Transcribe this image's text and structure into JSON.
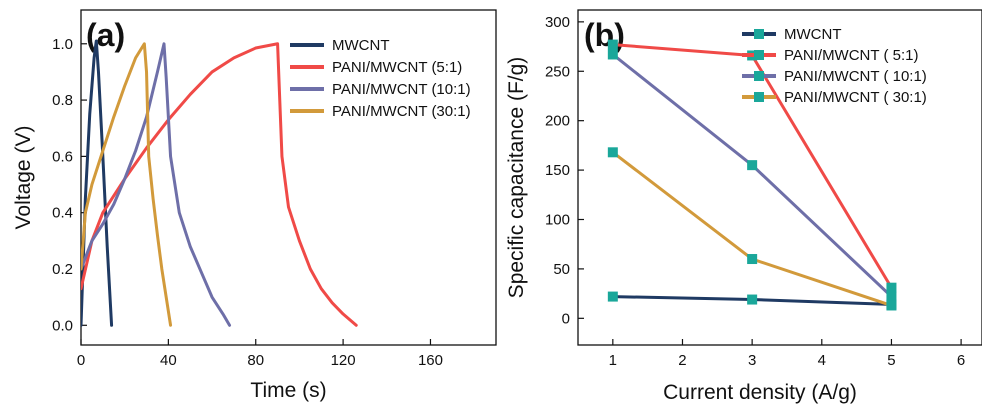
{
  "chart_data": [
    {
      "panel": "(a)",
      "type": "line",
      "xlabel": "Time (s)",
      "ylabel": "Voltage (V)",
      "xlim": [
        0,
        190
      ],
      "ylim": [
        -0.07,
        1.12
      ],
      "xticks": [
        0,
        40,
        80,
        120,
        160
      ],
      "yticks": [
        0.0,
        0.2,
        0.4,
        0.6,
        0.8,
        1.0
      ],
      "ytick_labels": [
        "0.0",
        "0.2",
        "0.4",
        "0.6",
        "0.8",
        "1.0"
      ],
      "legend_position": "top-right",
      "series": [
        {
          "name": "MWCNT",
          "color": "#1f3a63",
          "x": [
            0,
            2,
            4,
            6,
            7,
            8,
            10,
            12,
            14
          ],
          "y": [
            0.0,
            0.45,
            0.75,
            0.95,
            1.01,
            0.9,
            0.6,
            0.28,
            0.0
          ]
        },
        {
          "name": "PANI/MWCNT (5:1)",
          "color": "#f04a47",
          "x": [
            0,
            5,
            10,
            20,
            30,
            40,
            50,
            60,
            70,
            80,
            90,
            91,
            92,
            95,
            100,
            105,
            110,
            115,
            120,
            126
          ],
          "y": [
            0.13,
            0.3,
            0.4,
            0.52,
            0.63,
            0.73,
            0.82,
            0.9,
            0.95,
            0.985,
            1.0,
            0.8,
            0.6,
            0.42,
            0.3,
            0.2,
            0.13,
            0.08,
            0.04,
            0.0
          ]
        },
        {
          "name": "PANI/MWCNT (10:1)",
          "color": "#6e6fa8",
          "x": [
            0,
            5,
            10,
            15,
            20,
            25,
            30,
            35,
            38,
            39,
            41,
            45,
            50,
            55,
            60,
            65,
            68
          ],
          "y": [
            0.2,
            0.3,
            0.36,
            0.43,
            0.52,
            0.62,
            0.74,
            0.9,
            1.0,
            0.88,
            0.6,
            0.4,
            0.28,
            0.19,
            0.1,
            0.04,
            0.0
          ]
        },
        {
          "name": "PANI/MWCNT (30:1)",
          "color": "#d29a3b",
          "x": [
            0,
            2,
            5,
            10,
            15,
            20,
            25,
            29,
            30,
            31,
            33,
            35,
            37,
            39,
            41
          ],
          "y": [
            0.2,
            0.4,
            0.5,
            0.62,
            0.74,
            0.85,
            0.95,
            1.0,
            0.9,
            0.6,
            0.45,
            0.32,
            0.2,
            0.1,
            0.0
          ]
        }
      ]
    },
    {
      "panel": "(b)",
      "type": "line",
      "xlabel": "Current density (A/g)",
      "ylabel": "Specific capacitance (F/g)",
      "xlim": [
        0.5,
        6.3
      ],
      "ylim": [
        -27,
        312
      ],
      "xticks": [
        1,
        2,
        3,
        4,
        5,
        6
      ],
      "yticks": [
        0,
        50,
        100,
        150,
        200,
        250,
        300
      ],
      "legend_position": "top-right",
      "marker_color": "#1aa79a",
      "series": [
        {
          "name": "MWCNT",
          "color": "#1f3a63",
          "x": [
            1,
            3,
            5
          ],
          "y": [
            22,
            19,
            14
          ]
        },
        {
          "name": "PANI/MWCNT ( 5:1)",
          "color": "#f04a47",
          "x": [
            1,
            3,
            5
          ],
          "y": [
            277,
            266,
            31
          ]
        },
        {
          "name": "PANI/MWCNT ( 10:1)",
          "color": "#6e6fa8",
          "x": [
            1,
            3,
            5
          ],
          "y": [
            267,
            155,
            22
          ]
        },
        {
          "name": "PANI/MWCNT ( 30:1)",
          "color": "#d29a3b",
          "x": [
            1,
            3,
            5
          ],
          "y": [
            168,
            60,
            13
          ]
        }
      ]
    }
  ]
}
